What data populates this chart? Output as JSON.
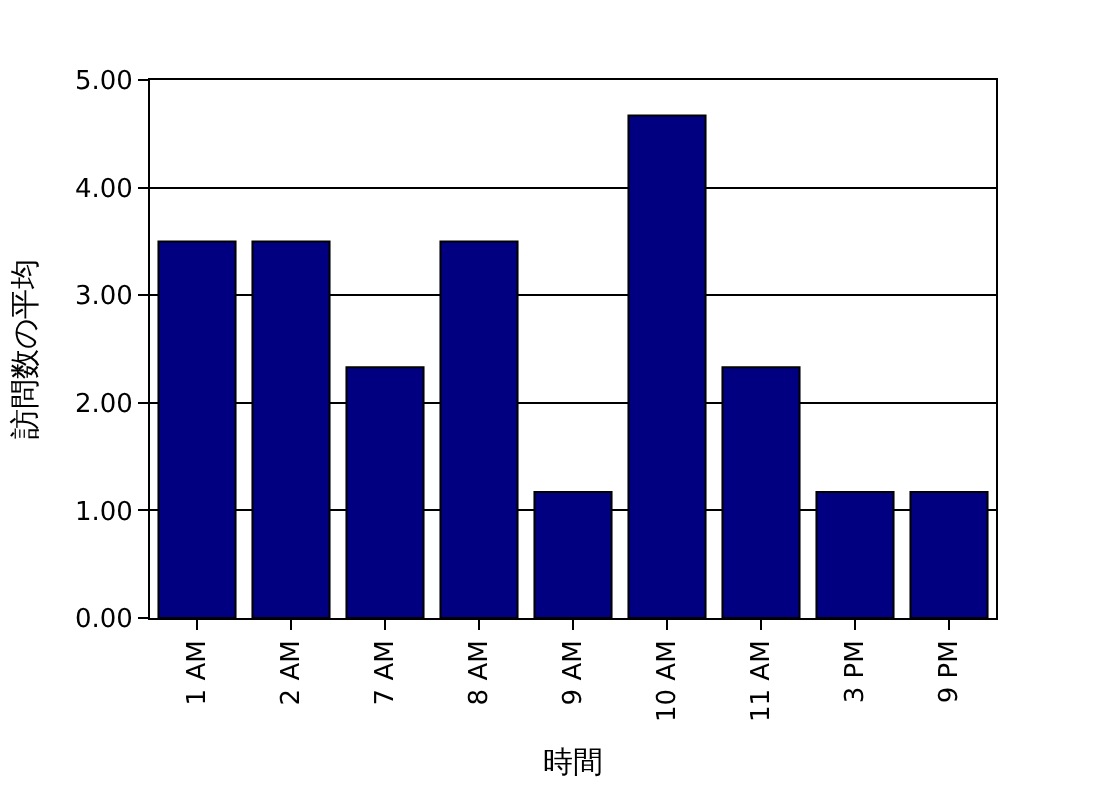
{
  "chart_data": {
    "type": "bar",
    "xlabel": "時間",
    "ylabel": "訪問数の平均",
    "categories": [
      "1 AM",
      "2 AM",
      "7 AM",
      "8 AM",
      "9 AM",
      "10 AM",
      "11 AM",
      "3 PM",
      "9 PM"
    ],
    "values": [
      3.5,
      3.5,
      2.33,
      3.5,
      1.17,
      4.67,
      2.33,
      1.17,
      1.17
    ],
    "color": "#000080",
    "ylim": [
      0,
      5
    ],
    "yticks": [
      {
        "value": 0,
        "label": "0.00"
      },
      {
        "value": 1,
        "label": "1.00"
      },
      {
        "value": 2,
        "label": "2.00"
      },
      {
        "value": 3,
        "label": "3.00"
      },
      {
        "value": 4,
        "label": "4.00"
      },
      {
        "value": 5,
        "label": "5.00"
      }
    ],
    "grid": "y"
  }
}
